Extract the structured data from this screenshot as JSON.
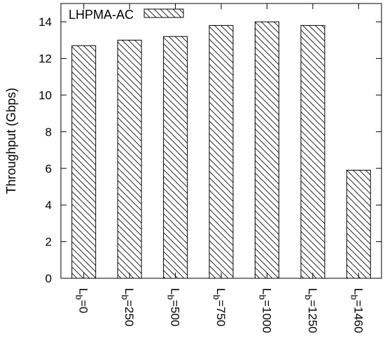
{
  "chart_data": {
    "type": "bar",
    "title": "",
    "xlabel": "",
    "ylabel": "Throughput (Gbps)",
    "ylim": [
      0,
      15
    ],
    "yticks": [
      0,
      2,
      4,
      6,
      8,
      10,
      12,
      14
    ],
    "grid": false,
    "legend_position": "top-left",
    "categories": [
      {
        "main": "L",
        "sub": "b",
        "rest": "=0"
      },
      {
        "main": "L",
        "sub": "b",
        "rest": "=250"
      },
      {
        "main": "L",
        "sub": "b",
        "rest": "=500"
      },
      {
        "main": "L",
        "sub": "b",
        "rest": "=750"
      },
      {
        "main": "L",
        "sub": "b",
        "rest": "=1000"
      },
      {
        "main": "L",
        "sub": "b",
        "rest": "=1250"
      },
      {
        "main": "L",
        "sub": "b",
        "rest": "=1460"
      }
    ],
    "series": [
      {
        "name": "LHPMA-AC",
        "values": [
          12.7,
          13.0,
          13.2,
          13.8,
          14.0,
          13.8,
          5.9
        ],
        "pattern": "diagonal-hatch"
      }
    ]
  }
}
